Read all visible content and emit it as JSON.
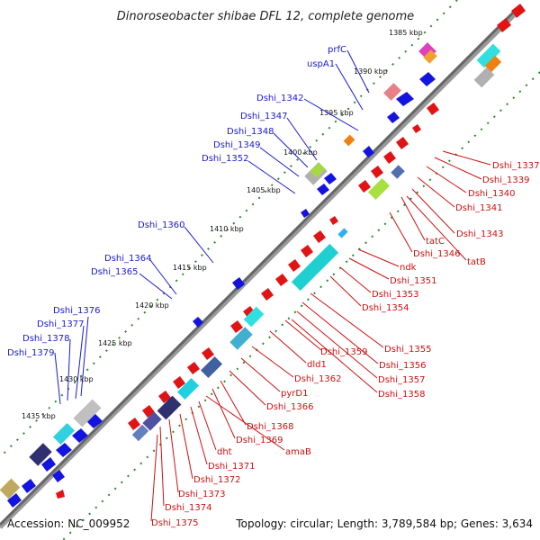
{
  "title": "Dinoroseobacter shibae DFL 12, complete genome",
  "accession": "Accession: NC_009952",
  "summary": "Topology: circular; Length: 3,789,584 bp; Genes: 3,634",
  "colors": {
    "forward_label": "#1a1acc",
    "reverse_label": "#cc1111",
    "backbone": "#777777",
    "tick_dots": "#2a8a2a",
    "fwd_gene": "#1414e0",
    "rev_gene": "#e01414"
  },
  "scale_ticks": [
    "1385 kbp",
    "1390 kbp",
    "1395 kbp",
    "1400 kbp",
    "1405 kbp",
    "1410 kbp",
    "1415 kbp",
    "1420 kbp",
    "1425 kbp",
    "1430 kbp",
    "1435 kbp"
  ],
  "forward_labels": [
    "prfC",
    "uspA1",
    "Dshi_1342",
    "Dshi_1347",
    "Dshi_1348",
    "Dshi_1349",
    "Dshi_1352",
    "Dshi_1360",
    "Dshi_1364",
    "Dshi_1365",
    "Dshi_1376",
    "Dshi_1377",
    "Dshi_1378",
    "Dshi_1379"
  ],
  "reverse_labels": [
    "Dshi_1337",
    "Dshi_1339",
    "Dshi_1340",
    "Dshi_1341",
    "Dshi_1343",
    "tatC",
    "Dshi_1346",
    "tatB",
    "ndk",
    "Dshi_1351",
    "Dshi_1353",
    "Dshi_1354",
    "Dshi_1355",
    "Dshi_1356",
    "Dshi_1357",
    "Dshi_1358",
    "Dshi_1359",
    "dld1",
    "Dshi_1362",
    "pyrD1",
    "Dshi_1366",
    "Dshi_1368",
    "Dshi_1369",
    "amaB",
    "dht",
    "Dshi_1371",
    "Dshi_1372",
    "Dshi_1373",
    "Dshi_1374",
    "Dshi_1375"
  ]
}
